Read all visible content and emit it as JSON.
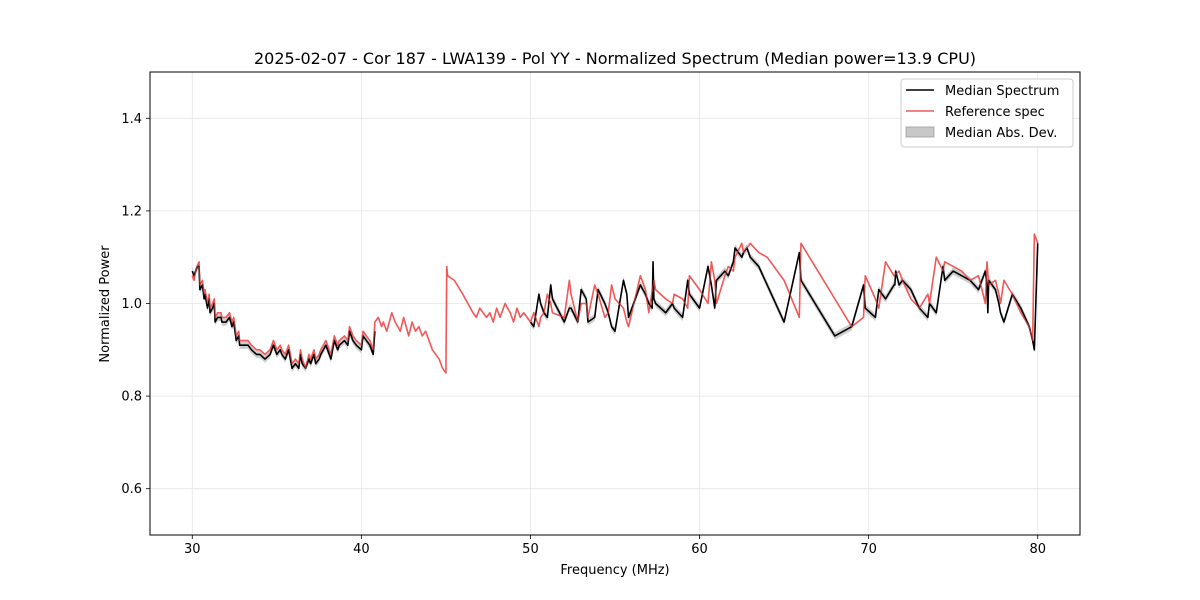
{
  "chart_data": {
    "type": "line",
    "title": "2025-02-07 - Cor 187 - LWA139 - Pol YY - Normalized Spectrum (Median power=13.9 CPU)",
    "xlabel": "Frequency (MHz)",
    "ylabel": "Normalized Power",
    "xlim": [
      27.5,
      82.5
    ],
    "ylim": [
      0.5,
      1.5
    ],
    "xticks": [
      30,
      40,
      50,
      60,
      70,
      80
    ],
    "yticks": [
      0.6,
      0.8,
      1.0,
      1.2,
      1.4
    ],
    "xtick_labels": [
      "30",
      "40",
      "50",
      "60",
      "70",
      "80"
    ],
    "ytick_labels": [
      "0.6",
      "0.8",
      "1.0",
      "1.2",
      "1.4"
    ],
    "grid": true,
    "legend_position": "top-right",
    "legend": [
      {
        "label": "Median Spectrum",
        "kind": "line",
        "color": "#000000"
      },
      {
        "label": "Reference spec",
        "kind": "line",
        "color": "#f15a5a"
      },
      {
        "label": "Median Abs. Dev.",
        "kind": "band",
        "color": "#c8c8c8"
      }
    ],
    "series": [
      {
        "name": "Reference spec",
        "color": "#f15a5a",
        "x": [
          30.0,
          30.1,
          30.2,
          30.3,
          30.4,
          30.45,
          30.6,
          30.7,
          30.75,
          30.9,
          31.0,
          31.05,
          31.2,
          31.3,
          31.35,
          31.5,
          31.7,
          31.75,
          32.0,
          32.2,
          32.35,
          32.45,
          32.6,
          32.75,
          32.8,
          33.0,
          33.05,
          33.3,
          33.5,
          33.8,
          34.0,
          34.3,
          34.6,
          34.8,
          35.0,
          35.2,
          35.3,
          35.5,
          35.7,
          35.9,
          36.1,
          36.3,
          36.4,
          36.5,
          36.7,
          36.9,
          37.0,
          37.2,
          37.3,
          37.5,
          37.6,
          37.9,
          38.0,
          38.2,
          38.4,
          38.6,
          38.7,
          39.0,
          39.2,
          39.3,
          39.5,
          39.7,
          40.0,
          40.1,
          40.3,
          40.5,
          40.7,
          40.8,
          41.0,
          41.2,
          41.3,
          41.5,
          41.8,
          42.0,
          42.3,
          42.5,
          42.8,
          43.0,
          43.2,
          43.4,
          43.6,
          43.8,
          44.0,
          44.2,
          44.4,
          44.6,
          44.8,
          45.0,
          45.05,
          45.1,
          45.5,
          46.0,
          46.3,
          46.6,
          46.8,
          47.0,
          47.2,
          47.4,
          47.6,
          47.8,
          48.0,
          48.2,
          48.5,
          48.8,
          49.0,
          49.2,
          49.4,
          49.6,
          49.8,
          50.0,
          50.2,
          50.5,
          50.6,
          50.8,
          51.0,
          51.2,
          51.3,
          52.0,
          52.3,
          52.4,
          52.8,
          53.0,
          53.3,
          53.4,
          53.8,
          54.0,
          54.4,
          54.6,
          54.8,
          55.0,
          55.5,
          55.7,
          55.8,
          56.5,
          56.8,
          57.0,
          57.3,
          57.4,
          58.0,
          58.4,
          58.5,
          59.0,
          59.3,
          59.4,
          60.0,
          60.5,
          60.7,
          60.9,
          61.0,
          61.5,
          61.7,
          62.0,
          62.1,
          62.5,
          62.6,
          62.8,
          63.0,
          63.5,
          64.0,
          65.0,
          65.9,
          66.0,
          67.0,
          68.0,
          69.0,
          69.7,
          69.8,
          70.4,
          70.6,
          71.0,
          71.5,
          71.8,
          72.0,
          72.5,
          73.0,
          73.5,
          73.6,
          74.0,
          74.4,
          74.5,
          75.0,
          75.5,
          76.0,
          76.5,
          76.9,
          77.0,
          77.1,
          77.5,
          77.7,
          77.8,
          78.0,
          78.5,
          79.0,
          79.5,
          79.7,
          79.8,
          80.0
        ],
        "y": [
          1.06,
          1.05,
          1.07,
          1.08,
          1.09,
          1.04,
          1.05,
          1.02,
          1.03,
          1.0,
          1.02,
          0.99,
          1.0,
          1.01,
          0.97,
          0.98,
          0.98,
          0.97,
          0.97,
          0.98,
          0.96,
          0.97,
          0.93,
          0.94,
          0.92,
          0.92,
          0.92,
          0.92,
          0.91,
          0.9,
          0.9,
          0.89,
          0.9,
          0.92,
          0.9,
          0.91,
          0.9,
          0.89,
          0.91,
          0.87,
          0.88,
          0.87,
          0.9,
          0.88,
          0.86,
          0.89,
          0.88,
          0.9,
          0.88,
          0.89,
          0.9,
          0.92,
          0.91,
          0.89,
          0.93,
          0.91,
          0.92,
          0.93,
          0.92,
          0.95,
          0.93,
          0.92,
          0.91,
          0.94,
          0.93,
          0.92,
          0.9,
          0.96,
          0.97,
          0.95,
          0.96,
          0.94,
          0.98,
          0.96,
          0.94,
          0.97,
          0.93,
          0.96,
          0.94,
          0.95,
          0.93,
          0.94,
          0.92,
          0.9,
          0.89,
          0.88,
          0.86,
          0.85,
          1.08,
          1.06,
          1.05,
          1.02,
          1.0,
          0.98,
          0.97,
          0.99,
          0.98,
          0.97,
          0.98,
          0.96,
          0.99,
          0.97,
          1.0,
          0.98,
          0.96,
          0.99,
          0.97,
          0.98,
          0.97,
          0.96,
          0.98,
          0.95,
          0.97,
          0.98,
          1.02,
          1.0,
          0.98,
          0.97,
          1.05,
          1.02,
          0.96,
          1.0,
          1.0,
          0.97,
          1.04,
          1.02,
          0.97,
          0.98,
          1.04,
          1.01,
          0.99,
          0.96,
          0.95,
          1.06,
          1.03,
          0.98,
          1.05,
          1.03,
          1.01,
          1.0,
          1.02,
          1.01,
          0.99,
          1.06,
          1.03,
          1.0,
          1.09,
          1.05,
          1.0,
          1.06,
          1.08,
          1.07,
          1.1,
          1.13,
          1.11,
          1.12,
          1.13,
          1.11,
          1.1,
          1.05,
          0.97,
          1.13,
          1.07,
          1.01,
          0.95,
          0.97,
          1.06,
          1.01,
          0.99,
          1.09,
          1.06,
          1.07,
          1.05,
          1.01,
          0.99,
          1.02,
          1.0,
          1.1,
          1.07,
          1.09,
          1.08,
          1.07,
          1.05,
          1.06,
          1.0,
          1.09,
          1.04,
          1.05,
          1.02,
          1.0,
          1.05,
          1.02,
          0.98,
          0.95,
          0.92,
          1.15,
          1.13
        ],
        "gap_after_index": []
      },
      {
        "name": "Median Spectrum",
        "color": "#000000",
        "segments": [
          {
            "x": [
              30.0,
              30.1,
              30.2,
              30.3,
              30.4,
              30.45,
              30.6,
              30.7,
              30.75,
              30.9,
              31.0,
              31.05,
              31.2,
              31.3,
              31.35,
              31.5,
              31.7,
              31.75,
              32.0,
              32.2,
              32.35,
              32.45,
              32.6,
              32.75,
              32.8,
              33.0,
              33.05,
              33.3,
              33.5,
              33.8,
              34.0,
              34.3,
              34.6,
              34.8,
              35.0,
              35.2,
              35.3,
              35.5,
              35.7,
              35.9,
              36.1,
              36.3,
              36.4,
              36.5,
              36.7,
              36.9,
              37.0,
              37.2,
              37.3,
              37.5,
              37.6,
              37.9,
              38.0,
              38.2,
              38.4,
              38.6,
              38.7,
              39.0,
              39.2,
              39.3,
              39.5,
              39.7,
              40.0,
              40.1,
              40.3,
              40.5,
              40.7,
              40.8
            ],
            "y": [
              1.07,
              1.06,
              1.07,
              1.08,
              1.08,
              1.03,
              1.04,
              1.01,
              1.02,
              0.99,
              1.01,
              0.98,
              0.99,
              1.0,
              0.96,
              0.97,
              0.97,
              0.96,
              0.96,
              0.97,
              0.95,
              0.96,
              0.92,
              0.93,
              0.91,
              0.91,
              0.91,
              0.91,
              0.9,
              0.89,
              0.89,
              0.88,
              0.89,
              0.91,
              0.89,
              0.9,
              0.89,
              0.88,
              0.9,
              0.86,
              0.87,
              0.86,
              0.89,
              0.87,
              0.86,
              0.88,
              0.87,
              0.89,
              0.87,
              0.88,
              0.89,
              0.91,
              0.9,
              0.88,
              0.92,
              0.9,
              0.91,
              0.92,
              0.91,
              0.94,
              0.92,
              0.91,
              0.9,
              0.93,
              0.92,
              0.91,
              0.89,
              0.94
            ]
          },
          {
            "x": [
              50.0,
              50.2,
              50.5,
              50.6,
              50.8,
              51.0,
              51.2,
              51.3,
              52.0,
              52.3,
              52.4,
              52.8,
              53.0,
              53.3,
              53.4,
              53.8,
              54.0,
              54.4,
              54.6,
              54.8,
              55.0,
              55.5,
              55.7,
              55.8,
              56.5,
              56.8,
              57.0,
              57.2,
              57.25,
              57.3,
              57.4,
              58.0,
              58.4,
              58.5,
              59.0,
              59.3,
              59.4,
              60.0,
              60.5,
              60.7,
              60.9,
              61.0,
              61.5,
              61.7,
              62.0,
              62.1,
              62.5,
              62.6,
              62.8,
              63.0,
              63.5,
              64.0,
              65.0,
              65.9,
              66.0,
              67.0,
              68.0,
              69.0,
              69.7,
              69.8,
              70.4,
              70.6,
              71.0,
              71.5,
              71.55,
              71.6,
              71.8,
              72.0,
              72.5,
              73.0,
              73.5,
              73.6,
              74.0,
              74.4,
              74.5,
              75.0,
              75.5,
              76.0,
              76.5,
              76.9,
              77.0,
              77.05,
              77.1,
              77.5,
              77.7,
              77.8,
              78.0,
              78.5,
              79.0,
              79.5,
              79.7,
              79.8,
              80.0
            ],
            "y": [
              0.96,
              0.95,
              1.02,
              1.0,
              0.98,
              0.97,
              1.04,
              1.01,
              0.96,
              0.99,
              0.99,
              0.96,
              1.03,
              1.01,
              0.96,
              0.97,
              1.03,
              1.0,
              0.98,
              0.95,
              0.94,
              1.05,
              1.02,
              0.97,
              1.04,
              1.02,
              1.0,
              0.99,
              1.09,
              1.01,
              1.0,
              0.98,
              1.0,
              0.99,
              0.97,
              1.05,
              1.02,
              0.99,
              1.08,
              1.04,
              0.99,
              1.05,
              1.07,
              1.06,
              1.09,
              1.12,
              1.1,
              1.11,
              1.12,
              1.1,
              1.08,
              1.04,
              0.96,
              1.11,
              1.05,
              0.99,
              0.93,
              0.95,
              1.04,
              0.99,
              0.97,
              1.03,
              1.01,
              1.04,
              1.04,
              1.07,
              1.04,
              1.05,
              1.03,
              0.99,
              0.97,
              1.0,
              0.98,
              1.08,
              1.05,
              1.07,
              1.06,
              1.05,
              1.03,
              1.07,
              1.04,
              0.98,
              1.05,
              1.03,
              1.0,
              0.98,
              0.96,
              1.02,
              0.99,
              0.95,
              0.92,
              0.9,
              1.13
            ]
          }
        ]
      }
    ],
    "band": {
      "name": "Median Abs. Dev.",
      "color": "#c8c8c8",
      "half_width": 0.008
    }
  }
}
